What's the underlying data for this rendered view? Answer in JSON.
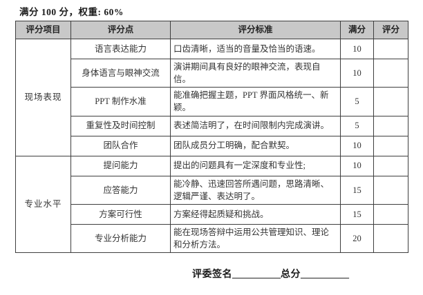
{
  "page": {
    "title": "满分 100 分，权重: 60%"
  },
  "table": {
    "headers": [
      "评分项目",
      "评分点",
      "评分标准",
      "满分",
      "评分"
    ],
    "groups": [
      {
        "category": "现场表现",
        "rows": [
          {
            "point": "语言表达能力",
            "criteria": "口齿清晰，适当的音量及恰当的语速。",
            "max": "10",
            "score": ""
          },
          {
            "point": "身体语言与眼神交流",
            "criteria": "演讲期间具有良好的眼神交流，表现自信。",
            "max": "10",
            "score": ""
          },
          {
            "point": "PPT 制作水准",
            "criteria": "能准确把握主题，PPT 界面风格统一、新颖。",
            "max": "5",
            "score": ""
          },
          {
            "point": "重复性及时间控制",
            "criteria": "表述简洁明了，在时间限制内完成演讲。",
            "max": "5",
            "score": ""
          },
          {
            "point": "团队合作",
            "criteria": "团队成员分工明确，配合默契。",
            "max": "10",
            "score": ""
          }
        ]
      },
      {
        "category": "专业水平",
        "rows": [
          {
            "point": "提问能力",
            "criteria": "提出的问题具有一定深度和专业性;",
            "max": "10",
            "score": ""
          },
          {
            "point": "应答能力",
            "criteria": "能冷静、迅速回答所遇问题，思路清晰、逻辑严谨、表达明了。",
            "max": "15",
            "score": ""
          },
          {
            "point": "方案可行性",
            "criteria": "方案经得起质疑和挑战。",
            "max": "15",
            "score": ""
          },
          {
            "point": "专业分析能力",
            "criteria": "能在现场答辩中运用公共管理知识、理论和分析方法。",
            "max": "20",
            "score": ""
          }
        ]
      }
    ]
  },
  "footer": {
    "judge_label": "评委签名",
    "judge_blank": "__________",
    "total_label": "总分",
    "total_blank": "__________"
  }
}
